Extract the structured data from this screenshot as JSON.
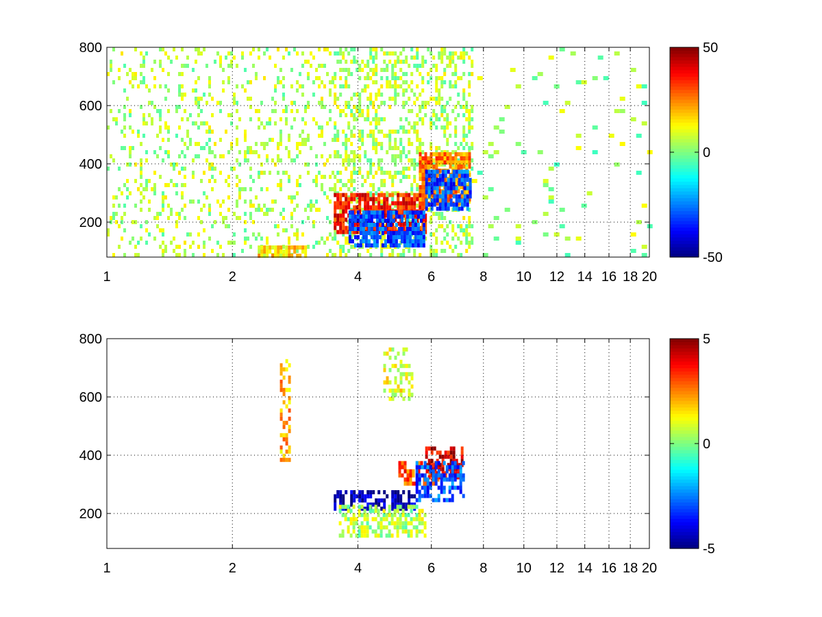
{
  "chart_data": [
    {
      "type": "heatmap",
      "title": "",
      "xlabel": "",
      "ylabel": "",
      "xscale": "log",
      "xlim": [
        1,
        20
      ],
      "ylim": [
        80,
        800
      ],
      "x_ticks": [
        1,
        2,
        4,
        6,
        8,
        10,
        12,
        14,
        16,
        18,
        20
      ],
      "x_tick_labels": [
        "1",
        "2",
        "4",
        "6",
        "8",
        "10",
        "12",
        "14",
        "16",
        "18",
        "20"
      ],
      "y_ticks": [
        200,
        400,
        600,
        800
      ],
      "y_tick_labels": [
        "200",
        "400",
        "600",
        "800"
      ],
      "grid": true,
      "colormap": "jet",
      "clim": [
        -50,
        50
      ],
      "colorbar_ticks": [
        50,
        0,
        -50
      ],
      "colorbar_tick_labels": [
        "50",
        "0",
        "-50"
      ],
      "features": [
        {
          "x_range": [
            1,
            3.5
          ],
          "y_range": [
            80,
            800
          ],
          "value": 5,
          "pattern": "dense sparse vertical streaks"
        },
        {
          "x_range": [
            3.5,
            7.5
          ],
          "y_range": [
            80,
            800
          ],
          "value": 5,
          "pattern": "dense vertical streaks"
        },
        {
          "x_range": [
            3.5,
            5.8
          ],
          "y_range": [
            170,
            300
          ],
          "value": 35,
          "pattern": "warm band"
        },
        {
          "x_range": [
            3.8,
            5.8
          ],
          "y_range": [
            120,
            240
          ],
          "value": -30,
          "pattern": "cool band"
        },
        {
          "x_range": [
            5.6,
            7.4
          ],
          "y_range": [
            270,
            440
          ],
          "value": 25,
          "pattern": "warm band"
        },
        {
          "x_range": [
            5.8,
            7.5
          ],
          "y_range": [
            250,
            380
          ],
          "value": -30,
          "pattern": "cool band"
        },
        {
          "x_range": [
            2.3,
            3.0
          ],
          "y_range": [
            80,
            120
          ],
          "value": 15,
          "pattern": "small yellow patch"
        },
        {
          "x_range": [
            7.5,
            20
          ],
          "y_range": [
            80,
            800
          ],
          "value": 3,
          "pattern": "sparse speckle"
        }
      ]
    },
    {
      "type": "heatmap",
      "title": "",
      "xlabel": "",
      "ylabel": "",
      "xscale": "log",
      "xlim": [
        1,
        20
      ],
      "ylim": [
        80,
        800
      ],
      "x_ticks": [
        1,
        2,
        4,
        6,
        8,
        10,
        12,
        14,
        16,
        18,
        20
      ],
      "x_tick_labels": [
        "1",
        "2",
        "4",
        "6",
        "8",
        "10",
        "12",
        "14",
        "16",
        "18",
        "20"
      ],
      "y_ticks": [
        200,
        400,
        600,
        800
      ],
      "y_tick_labels": [
        "200",
        "400",
        "600",
        "800"
      ],
      "grid": true,
      "colormap": "jet",
      "clim": [
        -5,
        5
      ],
      "colorbar_ticks": [
        5,
        0,
        -5
      ],
      "colorbar_tick_labels": [
        "5",
        "0",
        "-5"
      ],
      "features": [
        {
          "x_range": [
            3.5,
            5.5
          ],
          "y_range": [
            220,
            280
          ],
          "value": -4.5,
          "pattern": "dark blue band"
        },
        {
          "x_range": [
            3.6,
            5.8
          ],
          "y_range": [
            120,
            230
          ],
          "value": 0.5,
          "pattern": "cyan-green cloud"
        },
        {
          "x_range": [
            5.0,
            6.2
          ],
          "y_range": [
            300,
            380
          ],
          "value": 3,
          "pattern": "orange band"
        },
        {
          "x_range": [
            5.8,
            7.1
          ],
          "y_range": [
            330,
            430
          ],
          "value": 4,
          "pattern": "red band"
        },
        {
          "x_range": [
            5.5,
            7.2
          ],
          "y_range": [
            240,
            380
          ],
          "value": -3,
          "pattern": "blue band"
        },
        {
          "x_range": [
            2.6,
            2.75
          ],
          "y_range": [
            380,
            730
          ],
          "value": 2,
          "pattern": "vertical thin line"
        },
        {
          "x_range": [
            4.6,
            5.4
          ],
          "y_range": [
            600,
            770
          ],
          "value": 1,
          "pattern": "short streaks"
        }
      ]
    }
  ]
}
